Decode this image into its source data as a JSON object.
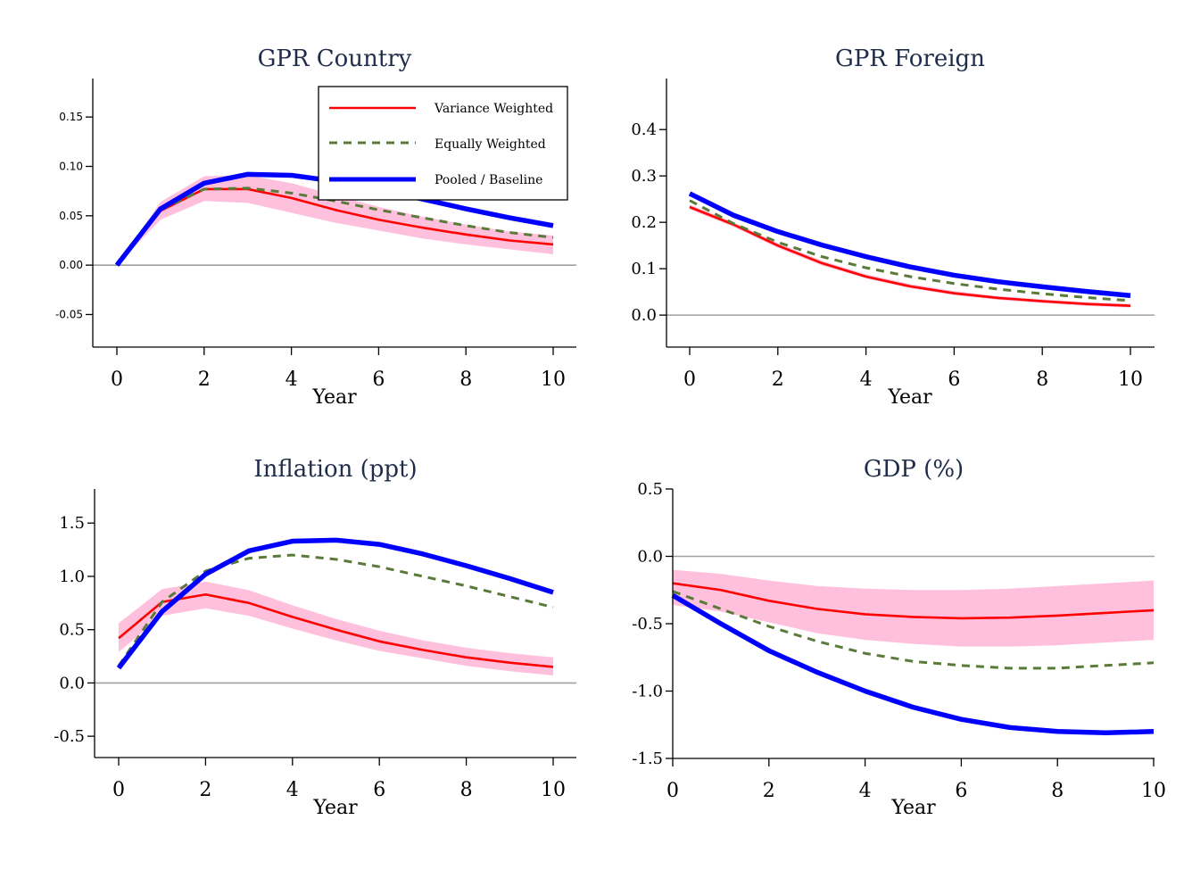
{
  "figure": {
    "legend": [
      {
        "name": "Variance Weighted",
        "color": "#ff0000",
        "style": "solid"
      },
      {
        "name": "Equally Weighted",
        "color": "#5a7a3a",
        "style": "dashed"
      },
      {
        "name": "Pooled / Baseline",
        "color": "#0000ff",
        "style": "solid-thick"
      }
    ],
    "band_color": "#ffc0dd",
    "zero_line_color": "#a0a0a0"
  },
  "chart_data": [
    {
      "type": "line",
      "title": "GPR Country",
      "xlabel": "Year",
      "ylabel": "",
      "x": [
        0,
        1,
        2,
        3,
        4,
        5,
        6,
        7,
        8,
        9,
        10
      ],
      "xticks": [
        "0",
        "2",
        "4",
        "6",
        "8",
        "10"
      ],
      "yticks": [
        "-0.05",
        "0.00",
        "0.05",
        "0.10",
        "0.15"
      ],
      "ytick_values": [
        -0.05,
        0.0,
        0.05,
        0.1,
        0.15
      ],
      "ylim": [
        -0.083,
        0.189
      ],
      "xlim": [
        -0.55,
        10.5
      ],
      "legend_position": "top-right",
      "series": [
        {
          "name": "Variance Weighted",
          "values": [
            0.0,
            0.055,
            0.077,
            0.077,
            0.068,
            0.056,
            0.046,
            0.038,
            0.031,
            0.025,
            0.021
          ]
        },
        {
          "name": "Equally Weighted",
          "values": [
            0.0,
            0.056,
            0.077,
            0.078,
            0.073,
            0.065,
            0.056,
            0.048,
            0.04,
            0.033,
            0.028
          ]
        },
        {
          "name": "Pooled / Baseline",
          "values": [
            0.0,
            0.057,
            0.083,
            0.092,
            0.091,
            0.085,
            0.077,
            0.067,
            0.057,
            0.048,
            0.04
          ]
        }
      ],
      "band": {
        "name": "Variance Weighted CI",
        "lower": [
          0.0,
          0.046,
          0.065,
          0.063,
          0.053,
          0.043,
          0.035,
          0.027,
          0.021,
          0.016,
          0.011
        ],
        "upper": [
          0.0,
          0.064,
          0.09,
          0.091,
          0.083,
          0.071,
          0.059,
          0.049,
          0.041,
          0.034,
          0.03
        ]
      }
    },
    {
      "type": "line",
      "title": "GPR Foreign",
      "xlabel": "Year",
      "ylabel": "",
      "x": [
        0,
        1,
        2,
        3,
        4,
        5,
        6,
        7,
        8,
        9,
        10
      ],
      "xticks": [
        "0",
        "2",
        "4",
        "6",
        "8",
        "10"
      ],
      "yticks": [
        "0.0",
        "0.1",
        "0.2",
        "0.3",
        "0.4"
      ],
      "ytick_values": [
        0.0,
        0.1,
        0.2,
        0.3,
        0.4
      ],
      "ylim": [
        -0.069,
        0.51
      ],
      "xlim": [
        -0.53,
        10.53
      ],
      "series": [
        {
          "name": "Variance Weighted",
          "values": [
            0.233,
            0.195,
            0.15,
            0.112,
            0.083,
            0.062,
            0.047,
            0.037,
            0.03,
            0.024,
            0.02
          ]
        },
        {
          "name": "Equally Weighted",
          "values": [
            0.247,
            0.197,
            0.157,
            0.126,
            0.102,
            0.083,
            0.068,
            0.056,
            0.046,
            0.038,
            0.031
          ]
        },
        {
          "name": "Pooled / Baseline",
          "values": [
            0.262,
            0.215,
            0.18,
            0.151,
            0.126,
            0.104,
            0.086,
            0.072,
            0.061,
            0.051,
            0.042
          ]
        }
      ],
      "band": {
        "name": "Variance Weighted CI",
        "lower": [
          0.228,
          0.19,
          0.145,
          0.107,
          0.079,
          0.058,
          0.043,
          0.033,
          0.026,
          0.02,
          0.016
        ],
        "upper": [
          0.238,
          0.2,
          0.155,
          0.117,
          0.088,
          0.067,
          0.052,
          0.041,
          0.034,
          0.028,
          0.024
        ]
      }
    },
    {
      "type": "line",
      "title": "Inflation (ppt)",
      "xlabel": "Year",
      "ylabel": "",
      "x": [
        0,
        1,
        2,
        3,
        4,
        5,
        6,
        7,
        8,
        9,
        10
      ],
      "xticks": [
        "0",
        "2",
        "4",
        "6",
        "8",
        "10"
      ],
      "yticks": [
        "-0.5",
        "0.0",
        "0.5",
        "1.0",
        "1.5"
      ],
      "ytick_values": [
        -0.5,
        0.0,
        0.5,
        1.0,
        1.5
      ],
      "ylim": [
        -0.7,
        1.82
      ],
      "xlim": [
        -0.55,
        10.5
      ],
      "series": [
        {
          "name": "Variance Weighted",
          "values": [
            0.42,
            0.76,
            0.83,
            0.75,
            0.62,
            0.5,
            0.39,
            0.31,
            0.24,
            0.19,
            0.15
          ]
        },
        {
          "name": "Equally Weighted",
          "values": [
            0.16,
            0.76,
            1.05,
            1.17,
            1.2,
            1.16,
            1.09,
            1.0,
            0.91,
            0.81,
            0.71
          ]
        },
        {
          "name": "Pooled / Baseline",
          "values": [
            0.14,
            0.67,
            1.02,
            1.24,
            1.33,
            1.34,
            1.3,
            1.21,
            1.1,
            0.98,
            0.85
          ]
        }
      ],
      "band": {
        "name": "Variance Weighted CI",
        "lower": [
          0.29,
          0.63,
          0.7,
          0.63,
          0.51,
          0.4,
          0.3,
          0.23,
          0.16,
          0.11,
          0.07
        ],
        "upper": [
          0.56,
          0.88,
          0.95,
          0.87,
          0.73,
          0.6,
          0.49,
          0.4,
          0.33,
          0.28,
          0.24
        ]
      }
    },
    {
      "type": "line",
      "title": "GDP (%)",
      "xlabel": "Year",
      "ylabel": "",
      "x": [
        0,
        1,
        2,
        3,
        4,
        5,
        6,
        7,
        8,
        9,
        10
      ],
      "xticks": [
        "0",
        "2",
        "4",
        "6",
        "8",
        "10"
      ],
      "yticks": [
        "-1.5",
        "-1.0",
        "-0.5",
        "0.0",
        "0.5"
      ],
      "ytick_values": [
        -1.5,
        -1.0,
        -0.5,
        0.0,
        0.5
      ],
      "ylim": [
        -1.5,
        0.5
      ],
      "xlim": [
        0,
        10
      ],
      "series": [
        {
          "name": "Variance Weighted",
          "values": [
            -0.2,
            -0.25,
            -0.33,
            -0.39,
            -0.43,
            -0.45,
            -0.46,
            -0.455,
            -0.44,
            -0.42,
            -0.4
          ]
        },
        {
          "name": "Equally Weighted",
          "values": [
            -0.26,
            -0.39,
            -0.52,
            -0.63,
            -0.72,
            -0.78,
            -0.81,
            -0.83,
            -0.83,
            -0.81,
            -0.79
          ]
        },
        {
          "name": "Pooled / Baseline",
          "values": [
            -0.29,
            -0.5,
            -0.7,
            -0.86,
            -1.0,
            -1.12,
            -1.21,
            -1.27,
            -1.3,
            -1.31,
            -1.3
          ]
        }
      ],
      "band": {
        "name": "Variance Weighted CI",
        "lower": [
          -0.36,
          -0.41,
          -0.49,
          -0.57,
          -0.62,
          -0.65,
          -0.67,
          -0.67,
          -0.66,
          -0.64,
          -0.62
        ],
        "upper": [
          -0.1,
          -0.13,
          -0.18,
          -0.22,
          -0.24,
          -0.25,
          -0.25,
          -0.24,
          -0.22,
          -0.2,
          -0.18
        ]
      }
    }
  ]
}
